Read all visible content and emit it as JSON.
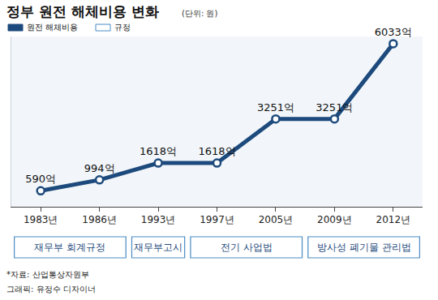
{
  "chart_data": {
    "type": "line",
    "title": "정부 원전 해체비용 변화",
    "subtitle": "(단위: 원)",
    "categories": [
      "1983년",
      "1986년",
      "1993년",
      "1997년",
      "2005년",
      "2009년",
      "2012년"
    ],
    "series": [
      {
        "name": "원전 해체비용",
        "color": "#1d4a7c",
        "values": [
          590,
          994,
          1618,
          1618,
          3251,
          3251,
          6033
        ],
        "value_labels": [
          "590억",
          "994억",
          "1618억",
          "1618억",
          "3251억",
          "3251억",
          "6033억"
        ]
      }
    ],
    "data_labels": true,
    "marker": "circle",
    "grid": false,
    "tick_labels": "x",
    "ylim": [
      0,
      6300
    ],
    "yticks": [],
    "regulation_legend": "규정",
    "regulations": [
      {
        "label": "재무부 회계규정",
        "from": "1983년",
        "to": "1986년"
      },
      {
        "label": "재무부고시",
        "from": "1993년",
        "to": "1993년"
      },
      {
        "label": "전기 사업법",
        "from": "1997년",
        "to": "2005년"
      },
      {
        "label": "방사성 폐기물 관리법",
        "from": "2009년",
        "to": "2012년"
      }
    ],
    "source": "*자료: 산업통상자원부",
    "credit": "그래픽: 유정수 디자이너"
  }
}
